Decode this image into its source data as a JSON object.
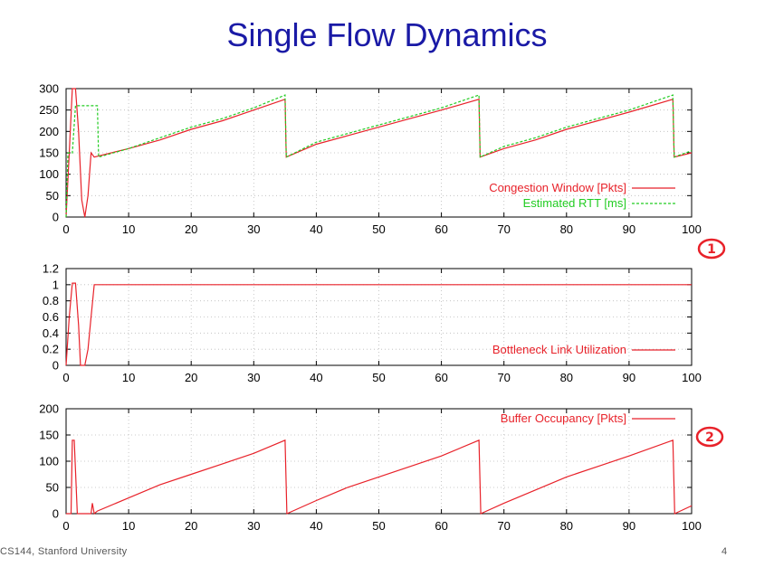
{
  "slide": {
    "title": "Single Flow Dynamics",
    "footer": "CS144, Stanford University",
    "page_number": "4",
    "annotations": [
      "1",
      "2"
    ]
  },
  "colors": {
    "title": "#1a1aa6",
    "red": "#e8222a",
    "green": "#22cc22",
    "annotation": "#e8222a"
  },
  "chart_data": [
    {
      "type": "line",
      "xlim": [
        0,
        100
      ],
      "ylim": [
        0,
        300
      ],
      "x_ticks": [
        "0",
        "10",
        "20",
        "30",
        "40",
        "50",
        "60",
        "70",
        "80",
        "90",
        "100"
      ],
      "y_ticks": [
        "0",
        "50",
        "100",
        "150",
        "200",
        "250",
        "300"
      ],
      "grid": true,
      "legend_position": "bottom-right",
      "series": [
        {
          "name": "Congestion Window [Pkts]",
          "color": "#e8222a",
          "style": "solid",
          "points": [
            [
              0,
              0
            ],
            [
              0.5,
              150
            ],
            [
              1,
              300
            ],
            [
              1.5,
              300
            ],
            [
              2,
              200
            ],
            [
              2.5,
              40
            ],
            [
              3,
              0
            ],
            [
              3.5,
              50
            ],
            [
              4,
              150
            ],
            [
              4.5,
              140
            ],
            [
              10,
              160
            ],
            [
              15,
              180
            ],
            [
              20,
              205
            ],
            [
              25,
              225
            ],
            [
              30,
              250
            ],
            [
              35,
              275
            ],
            [
              35.2,
              140
            ],
            [
              40,
              170
            ],
            [
              45,
              190
            ],
            [
              50,
              210
            ],
            [
              55,
              230
            ],
            [
              60,
              250
            ],
            [
              66,
              275
            ],
            [
              66.2,
              140
            ],
            [
              70,
              160
            ],
            [
              75,
              180
            ],
            [
              80,
              205
            ],
            [
              85,
              225
            ],
            [
              90,
              245
            ],
            [
              97,
              275
            ],
            [
              97.2,
              140
            ],
            [
              100,
              150
            ]
          ]
        },
        {
          "name": "Estimated RTT     [ms]",
          "color": "#22cc22",
          "style": "dashed",
          "points": [
            [
              0,
              0
            ],
            [
              0.3,
              150
            ],
            [
              1,
              150
            ],
            [
              1.5,
              260
            ],
            [
              5,
              260
            ],
            [
              5.2,
              140
            ],
            [
              10,
              160
            ],
            [
              15,
              185
            ],
            [
              20,
              210
            ],
            [
              25,
              230
            ],
            [
              30,
              255
            ],
            [
              35,
              285
            ],
            [
              35.2,
              140
            ],
            [
              40,
              175
            ],
            [
              45,
              195
            ],
            [
              50,
              215
            ],
            [
              55,
              235
            ],
            [
              60,
              255
            ],
            [
              66,
              285
            ],
            [
              66.2,
              140
            ],
            [
              70,
              165
            ],
            [
              75,
              185
            ],
            [
              80,
              210
            ],
            [
              85,
              230
            ],
            [
              90,
              250
            ],
            [
              97,
              285
            ],
            [
              97.2,
              140
            ],
            [
              100,
              155
            ]
          ]
        }
      ]
    },
    {
      "type": "line",
      "xlim": [
        0,
        100
      ],
      "ylim": [
        0,
        1.2
      ],
      "x_ticks": [
        "0",
        "10",
        "20",
        "30",
        "40",
        "50",
        "60",
        "70",
        "80",
        "90",
        "100"
      ],
      "y_ticks": [
        "0",
        "0.2",
        "0.4",
        "0.6",
        "0.8",
        "1",
        "1.2"
      ],
      "grid": true,
      "legend_position": "bottom-right",
      "series": [
        {
          "name": "Bottleneck Link Utilization",
          "color": "#e8222a",
          "style": "solid",
          "points": [
            [
              0,
              0
            ],
            [
              0.5,
              0.6
            ],
            [
              1,
              1.02
            ],
            [
              1.5,
              1.02
            ],
            [
              2,
              0.5
            ],
            [
              2.3,
              0
            ],
            [
              3,
              0
            ],
            [
              3.5,
              0.2
            ],
            [
              4,
              0.6
            ],
            [
              4.5,
              1.0
            ],
            [
              100,
              1.0
            ]
          ]
        }
      ]
    },
    {
      "type": "line",
      "xlim": [
        0,
        100
      ],
      "ylim": [
        0,
        200
      ],
      "x_ticks": [
        "0",
        "10",
        "20",
        "30",
        "40",
        "50",
        "60",
        "70",
        "80",
        "90",
        "100"
      ],
      "y_ticks": [
        "0",
        "50",
        "100",
        "150",
        "200"
      ],
      "grid": true,
      "legend_position": "top-right",
      "series": [
        {
          "name": "Buffer Occupancy [Pkts]",
          "color": "#e8222a",
          "style": "solid",
          "points": [
            [
              0,
              0
            ],
            [
              0.8,
              0
            ],
            [
              1,
              140
            ],
            [
              1.3,
              140
            ],
            [
              1.8,
              0
            ],
            [
              4,
              0
            ],
            [
              4.2,
              20
            ],
            [
              4.5,
              0
            ],
            [
              5,
              5
            ],
            [
              10,
              30
            ],
            [
              15,
              55
            ],
            [
              20,
              75
            ],
            [
              25,
              95
            ],
            [
              30,
              115
            ],
            [
              35,
              140
            ],
            [
              35.3,
              0
            ],
            [
              40,
              25
            ],
            [
              45,
              50
            ],
            [
              50,
              70
            ],
            [
              55,
              90
            ],
            [
              60,
              110
            ],
            [
              66,
              140
            ],
            [
              66.3,
              0
            ],
            [
              70,
              20
            ],
            [
              75,
              45
            ],
            [
              80,
              70
            ],
            [
              85,
              90
            ],
            [
              90,
              110
            ],
            [
              97,
              140
            ],
            [
              97.3,
              0
            ],
            [
              100,
              15
            ]
          ]
        }
      ]
    }
  ]
}
